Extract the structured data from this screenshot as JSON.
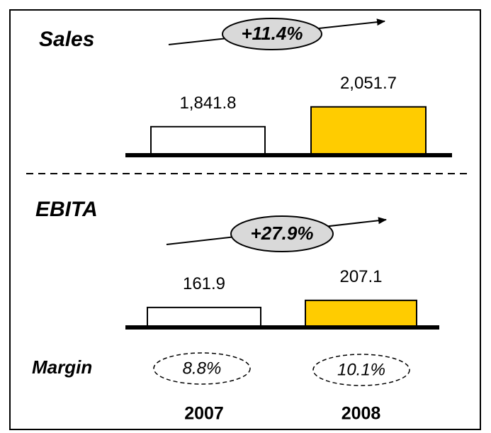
{
  "chart_data": [
    {
      "type": "bar",
      "title": "Sales",
      "annotation": "+11.4%",
      "categories": [
        null,
        null
      ],
      "values": [
        1841.8,
        2051.7
      ],
      "value_labels": [
        "1,841.8",
        "2,051.7"
      ],
      "colors": [
        "#ffffff",
        "#ffcc00"
      ],
      "ylim": [
        1540,
        2200
      ]
    },
    {
      "type": "bar",
      "title": "EBITA",
      "annotation": "+27.9%",
      "categories": [
        "2007",
        "2008"
      ],
      "values": [
        161.9,
        207.1
      ],
      "value_labels": [
        "161.9",
        "207.1"
      ],
      "colors": [
        "#ffffff",
        "#ffcc00"
      ],
      "ylim": [
        35,
        310
      ]
    }
  ],
  "margin": {
    "label": "Margin",
    "values": [
      8.8,
      10.1
    ],
    "value_labels": [
      "8.8%",
      "10.1%"
    ]
  }
}
